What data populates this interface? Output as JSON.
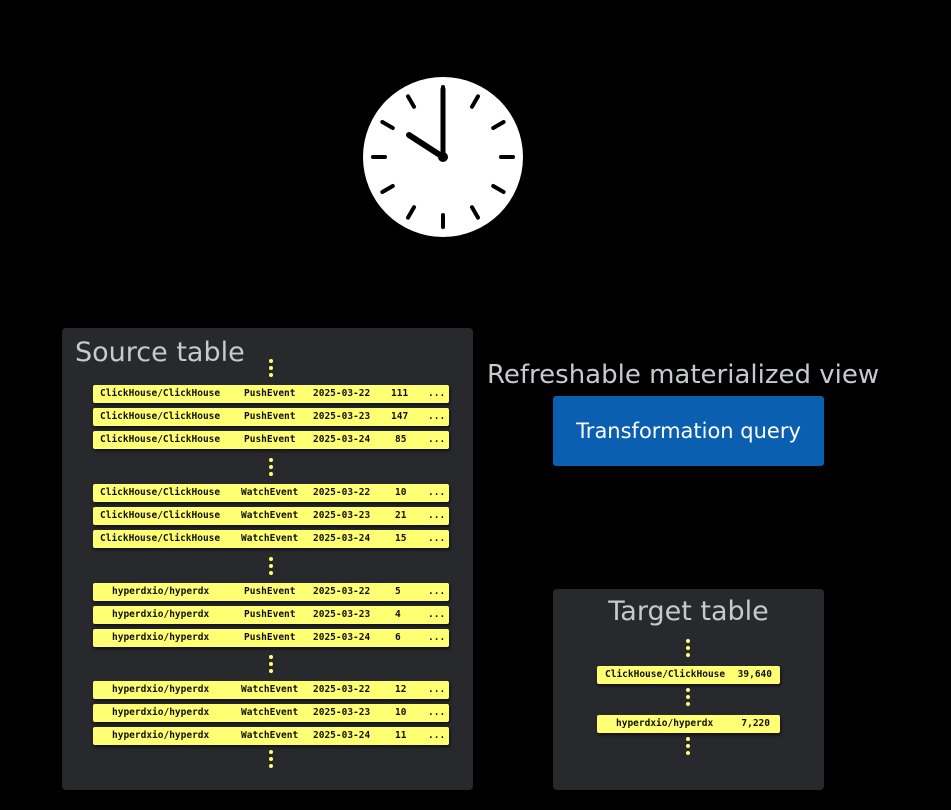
{
  "clock": {
    "icon": "clock-icon",
    "time": "10:00"
  },
  "source": {
    "title": "Source table",
    "groups": [
      [
        [
          "ClickHouse/ClickHouse",
          "PushEvent",
          "2025-03-22",
          "111",
          "..."
        ],
        [
          "ClickHouse/ClickHouse",
          "PushEvent",
          "2025-03-23",
          "147",
          "..."
        ],
        [
          "ClickHouse/ClickHouse",
          "PushEvent",
          "2025-03-24",
          "85",
          "..."
        ]
      ],
      [
        [
          "ClickHouse/ClickHouse",
          "WatchEvent",
          "2025-03-22",
          "10",
          "..."
        ],
        [
          "ClickHouse/ClickHouse",
          "WatchEvent",
          "2025-03-23",
          "21",
          "..."
        ],
        [
          "ClickHouse/ClickHouse",
          "WatchEvent",
          "2025-03-24",
          "15",
          "..."
        ]
      ],
      [
        [
          "hyperdxio/hyperdx",
          "PushEvent",
          "2025-03-22",
          "5",
          "..."
        ],
        [
          "hyperdxio/hyperdx",
          "PushEvent",
          "2025-03-23",
          "4",
          "..."
        ],
        [
          "hyperdxio/hyperdx",
          "PushEvent",
          "2025-03-24",
          "6",
          "..."
        ]
      ],
      [
        [
          "hyperdxio/hyperdx",
          "WatchEvent",
          "2025-03-22",
          "12",
          "..."
        ],
        [
          "hyperdxio/hyperdx",
          "WatchEvent",
          "2025-03-23",
          "10",
          "..."
        ],
        [
          "hyperdxio/hyperdx",
          "WatchEvent",
          "2025-03-24",
          "11",
          "..."
        ]
      ]
    ]
  },
  "view": {
    "title": "Refreshable materialized view",
    "button": "Transformation query",
    "color": "#0a5fb0"
  },
  "target": {
    "title": "Target table",
    "rows": [
      [
        "ClickHouse/ClickHouse",
        "39,640"
      ],
      [
        "hyperdxio/hyperdx",
        "7,220"
      ]
    ]
  },
  "colors": {
    "row": "#ffff73",
    "panel": "#28292d"
  }
}
